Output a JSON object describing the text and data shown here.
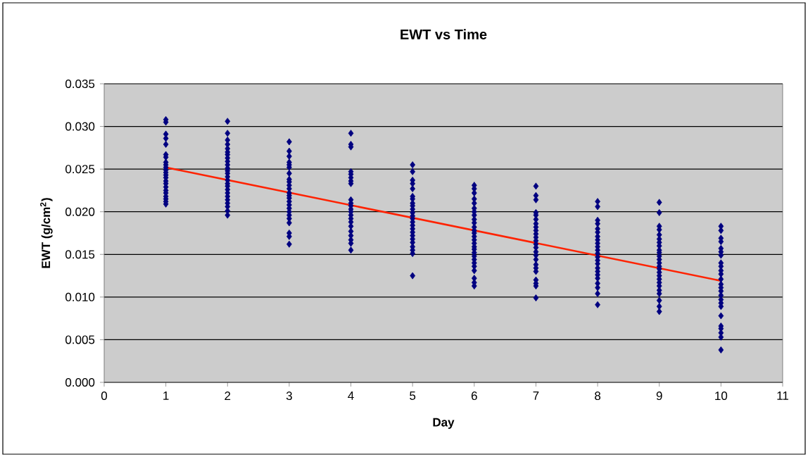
{
  "chart_data": {
    "type": "scatter",
    "title": "EWT vs Time",
    "xlabel": "Day",
    "ylabel": "EWT (g/cm$^{2}$)",
    "xlim": [
      0,
      11
    ],
    "xticks": [
      0,
      1,
      2,
      3,
      4,
      5,
      6,
      7,
      8,
      9,
      10,
      11
    ],
    "ylim": [
      0,
      0.035
    ],
    "yticks": [
      {
        "value": 0,
        "label": "0.000"
      },
      {
        "value": 0.005,
        "label": "0.005"
      },
      {
        "value": 0.01,
        "label": "0.010"
      },
      {
        "value": 0.015,
        "label": "0.015"
      },
      {
        "value": 0.02,
        "label": "0.020"
      },
      {
        "value": 0.025,
        "label": "0.025"
      },
      {
        "value": 0.03,
        "label": "0.030"
      },
      {
        "value": 0.035,
        "label": "0.035"
      }
    ],
    "grid": "y",
    "marker": "diamond",
    "series": [
      {
        "color": "#000080",
        "x": [
          1,
          1,
          1,
          1,
          1,
          1,
          1,
          1,
          1,
          1,
          1,
          1,
          1,
          1,
          1,
          1,
          1,
          1,
          1,
          1,
          1,
          1,
          1
        ],
        "values": [
          0.0308,
          0.0305,
          0.0291,
          0.0286,
          0.0279,
          0.0267,
          0.0264,
          0.0258,
          0.0255,
          0.0252,
          0.0249,
          0.0246,
          0.0243,
          0.024,
          0.0236,
          0.0233,
          0.0229,
          0.0225,
          0.0222,
          0.0218,
          0.0215,
          0.0212,
          0.0209
        ]
      },
      {
        "color": "#000080",
        "x": [
          2,
          2,
          2,
          2,
          2,
          2,
          2,
          2,
          2,
          2,
          2,
          2,
          2,
          2,
          2,
          2,
          2,
          2,
          2,
          2,
          2,
          2,
          2,
          2,
          2
        ],
        "values": [
          0.0306,
          0.0292,
          0.0284,
          0.0279,
          0.0274,
          0.027,
          0.0267,
          0.0263,
          0.0259,
          0.0255,
          0.0251,
          0.0248,
          0.0245,
          0.0241,
          0.0237,
          0.0233,
          0.023,
          0.0226,
          0.0222,
          0.0218,
          0.0214,
          0.021,
          0.0206,
          0.0201,
          0.0196
        ]
      },
      {
        "color": "#000080",
        "x": [
          3,
          3,
          3,
          3,
          3,
          3,
          3,
          3,
          3,
          3,
          3,
          3,
          3,
          3,
          3,
          3,
          3,
          3,
          3,
          3,
          3,
          3,
          3,
          3
        ],
        "values": [
          0.0282,
          0.0271,
          0.0265,
          0.0258,
          0.0255,
          0.0252,
          0.0245,
          0.0238,
          0.0235,
          0.0231,
          0.0227,
          0.0222,
          0.0219,
          0.0216,
          0.0212,
          0.0208,
          0.0204,
          0.02,
          0.0196,
          0.0192,
          0.0187,
          0.0175,
          0.0171,
          0.0162
        ]
      },
      {
        "color": "#000080",
        "x": [
          4,
          4,
          4,
          4,
          4,
          4,
          4,
          4,
          4,
          4,
          4,
          4,
          4,
          4,
          4,
          4,
          4,
          4,
          4,
          4,
          4,
          4
        ],
        "values": [
          0.0292,
          0.0279,
          0.0276,
          0.0247,
          0.0244,
          0.024,
          0.0236,
          0.0233,
          0.0214,
          0.021,
          0.0207,
          0.0203,
          0.02,
          0.0196,
          0.0192,
          0.0188,
          0.0183,
          0.0177,
          0.0172,
          0.0167,
          0.0163,
          0.0155
        ]
      },
      {
        "color": "#000080",
        "x": [
          5,
          5,
          5,
          5,
          5,
          5,
          5,
          5,
          5,
          5,
          5,
          5,
          5,
          5,
          5,
          5,
          5,
          5,
          5,
          5,
          5,
          5,
          5,
          5
        ],
        "values": [
          0.0255,
          0.0247,
          0.0237,
          0.0233,
          0.0227,
          0.0218,
          0.0215,
          0.021,
          0.0207,
          0.0203,
          0.0199,
          0.0195,
          0.0192,
          0.0188,
          0.0184,
          0.018,
          0.0176,
          0.0172,
          0.0168,
          0.0164,
          0.0159,
          0.0155,
          0.0151,
          0.0125
        ]
      },
      {
        "color": "#000080",
        "x": [
          6,
          6,
          6,
          6,
          6,
          6,
          6,
          6,
          6,
          6,
          6,
          6,
          6,
          6,
          6,
          6,
          6,
          6,
          6,
          6,
          6,
          6,
          6,
          6,
          6,
          6,
          6
        ],
        "values": [
          0.0231,
          0.0227,
          0.0222,
          0.0215,
          0.021,
          0.0204,
          0.02,
          0.0196,
          0.0191,
          0.0187,
          0.0182,
          0.0178,
          0.0175,
          0.0171,
          0.0167,
          0.0163,
          0.0159,
          0.0156,
          0.0152,
          0.0148,
          0.0144,
          0.014,
          0.0136,
          0.0131,
          0.0122,
          0.0117,
          0.0113
        ]
      },
      {
        "color": "#000080",
        "x": [
          7,
          7,
          7,
          7,
          7,
          7,
          7,
          7,
          7,
          7,
          7,
          7,
          7,
          7,
          7,
          7,
          7,
          7,
          7,
          7,
          7,
          7,
          7,
          7
        ],
        "values": [
          0.023,
          0.0219,
          0.0214,
          0.0199,
          0.0196,
          0.0191,
          0.0186,
          0.0182,
          0.0178,
          0.0174,
          0.017,
          0.0166,
          0.0162,
          0.0158,
          0.0153,
          0.0149,
          0.0144,
          0.0138,
          0.0134,
          0.013,
          0.012,
          0.0116,
          0.0113,
          0.0099
        ]
      },
      {
        "color": "#000080",
        "x": [
          8,
          8,
          8,
          8,
          8,
          8,
          8,
          8,
          8,
          8,
          8,
          8,
          8,
          8,
          8,
          8,
          8,
          8,
          8,
          8,
          8,
          8,
          8
        ],
        "values": [
          0.0212,
          0.0206,
          0.019,
          0.0186,
          0.018,
          0.0176,
          0.0171,
          0.0167,
          0.0163,
          0.0159,
          0.0155,
          0.0151,
          0.0147,
          0.0143,
          0.0139,
          0.0134,
          0.013,
          0.0126,
          0.0122,
          0.0116,
          0.0111,
          0.0104,
          0.0091
        ]
      },
      {
        "color": "#000080",
        "x": [
          9,
          9,
          9,
          9,
          9,
          9,
          9,
          9,
          9,
          9,
          9,
          9,
          9,
          9,
          9,
          9,
          9,
          9,
          9,
          9,
          9,
          9,
          9,
          9,
          9
        ],
        "values": [
          0.0211,
          0.0199,
          0.0183,
          0.0179,
          0.0173,
          0.0168,
          0.0164,
          0.016,
          0.0155,
          0.0152,
          0.0148,
          0.0144,
          0.014,
          0.0136,
          0.0133,
          0.0129,
          0.0125,
          0.0121,
          0.0117,
          0.0113,
          0.0108,
          0.0104,
          0.0096,
          0.0089,
          0.0083
        ]
      },
      {
        "color": "#000080",
        "x": [
          10,
          10,
          10,
          10,
          10,
          10,
          10,
          10,
          10,
          10,
          10,
          10,
          10,
          10,
          10,
          10,
          10,
          10,
          10,
          10,
          10,
          10,
          10,
          10,
          10
        ],
        "values": [
          0.0183,
          0.0178,
          0.0169,
          0.0165,
          0.0157,
          0.0153,
          0.0149,
          0.014,
          0.0136,
          0.0131,
          0.0127,
          0.0121,
          0.0115,
          0.0111,
          0.0107,
          0.0102,
          0.0097,
          0.0093,
          0.0089,
          0.0078,
          0.0066,
          0.0063,
          0.0058,
          0.0053,
          0.0038
        ]
      },
      {
        "type": "line",
        "color": "#ff2200",
        "marker": "none",
        "x": [
          1,
          10
        ],
        "values": [
          0.0252,
          0.0119
        ]
      }
    ]
  }
}
